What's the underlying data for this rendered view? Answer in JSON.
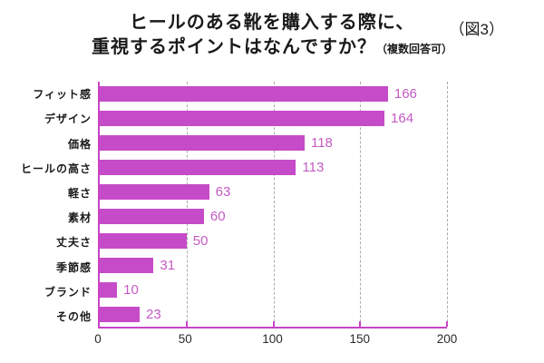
{
  "title": {
    "line1": "ヒールのある靴を購入する際に、",
    "line2": "重視するポイントはなんですか？",
    "note": "（複数回答可）"
  },
  "figure_label": "（図3）",
  "colors": {
    "bar": "#c64bc8",
    "value_label": "#c45ac4",
    "axis": "#c843c8",
    "gridline": "#ababab",
    "text": "#1a1a1a"
  },
  "chart_data": {
    "type": "bar",
    "orientation": "horizontal",
    "title": "ヒールのある靴を購入する際に、重視するポイントはなんですか？（複数回答可）",
    "categories": [
      "フィット感",
      "デザイン",
      "価格",
      "ヒールの高さ",
      "軽さ",
      "素材",
      "丈夫さ",
      "季節感",
      "ブランド",
      "その他"
    ],
    "values": [
      166,
      164,
      118,
      113,
      63,
      60,
      50,
      31,
      10,
      23
    ],
    "xlabel": "",
    "ylabel": "",
    "xlim": [
      0,
      200
    ],
    "xticks": [
      0,
      50,
      100,
      150,
      200
    ],
    "grid": "vertical-dashed",
    "data_labels": true,
    "legend": "none"
  }
}
